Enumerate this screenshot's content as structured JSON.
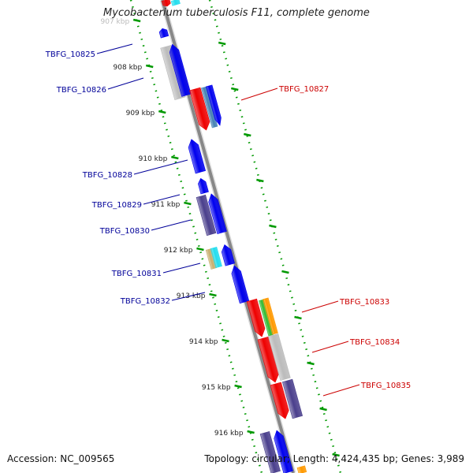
{
  "title": "Mycobacterium tuberculosis F11, complete genome",
  "footer": {
    "accession": "Accession: NC_009565",
    "summary": "Topology: circular; Length: 4,424,435 bp; Genes: 3,989"
  },
  "colors": {
    "backbone": "#888888",
    "tick": "#009900",
    "left_label": "#000099",
    "right_label": "#cc0000",
    "blue": "#0000ee",
    "slate": "#4a3f8c",
    "grey": "#bbbbbb",
    "red": "#ee0000",
    "steel": "#4682b4",
    "cyan": "#22ddee",
    "tan": "#c8b070",
    "green": "#33bb33",
    "orange": "#ff9900"
  },
  "scale": {
    "ticks": [
      {
        "kbp": 907,
        "label": "907 kbp",
        "faded": true
      },
      {
        "kbp": 908,
        "label": "908 kbp"
      },
      {
        "kbp": 909,
        "label": "909 kbp"
      },
      {
        "kbp": 910,
        "label": "910 kbp"
      },
      {
        "kbp": 911,
        "label": "911 kbp"
      },
      {
        "kbp": 912,
        "label": "912 kbp"
      },
      {
        "kbp": 913,
        "label": "913 kbp"
      },
      {
        "kbp": 914,
        "label": "914 kbp"
      },
      {
        "kbp": 915,
        "label": "915 kbp"
      },
      {
        "kbp": 916,
        "label": "916 kbp"
      }
    ]
  },
  "genes": [
    {
      "label": "TBFG_10825",
      "strand": "minus"
    },
    {
      "label": "TBFG_10826",
      "strand": "minus"
    },
    {
      "label": "TBFG_10827",
      "strand": "plus"
    },
    {
      "label": "TBFG_10828",
      "strand": "minus"
    },
    {
      "label": "TBFG_10829",
      "strand": "minus"
    },
    {
      "label": "TBFG_10830",
      "strand": "minus"
    },
    {
      "label": "TBFG_10831",
      "strand": "minus"
    },
    {
      "label": "TBFG_10832",
      "strand": "minus"
    },
    {
      "label": "TBFG_10833",
      "strand": "plus"
    },
    {
      "label": "TBFG_10834",
      "strand": "plus"
    },
    {
      "label": "TBFG_10835",
      "strand": "plus"
    }
  ]
}
